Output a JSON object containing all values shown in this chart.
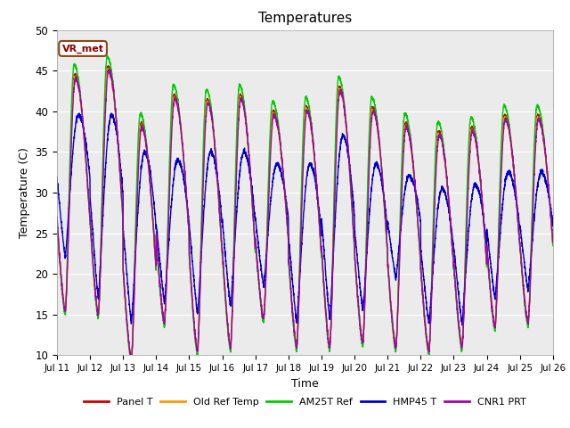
{
  "title": "Temperatures",
  "xlabel": "Time",
  "ylabel": "Temperature (C)",
  "ylim": [
    10,
    50
  ],
  "x_tick_labels": [
    "Jul 11",
    "Jul 12",
    "Jul 13",
    "Jul 14",
    "Jul 15",
    "Jul 16",
    "Jul 17",
    "Jul 18",
    "Jul 19",
    "Jul 20",
    "Jul 21",
    "Jul 22",
    "Jul 23",
    "Jul 24",
    "Jul 25",
    "Jul 26"
  ],
  "yticks": [
    10,
    15,
    20,
    25,
    30,
    35,
    40,
    45,
    50
  ],
  "legend_entries": [
    "Panel T",
    "Old Ref Temp",
    "AM25T Ref",
    "HMP45 T",
    "CNR1 PRT"
  ],
  "line_colors": [
    "#cc0000",
    "#ff9900",
    "#00cc00",
    "#0000cc",
    "#aa00aa"
  ],
  "annotation_text": "VR_met",
  "background_color": "#ebebeb",
  "grid_color": "white",
  "title_fontsize": 11,
  "axis_fontsize": 9,
  "n_days": 15,
  "points_per_day": 288,
  "day_maxes": [
    44.5,
    45.5,
    38.5,
    42.0,
    41.5,
    42.0,
    40.0,
    40.5,
    43.0,
    40.5,
    38.5,
    37.5,
    38.0,
    39.5,
    39.5
  ],
  "day_mins": [
    15.5,
    15.0,
    9.5,
    14.0,
    10.5,
    11.0,
    14.5,
    11.0,
    11.0,
    11.5,
    11.0,
    10.5,
    11.0,
    13.5,
    14.0
  ],
  "hmp45_maxes": [
    39.5,
    39.5,
    35.0,
    34.0,
    35.0,
    35.0,
    33.5,
    33.5,
    37.0,
    33.5,
    32.0,
    30.5,
    31.0,
    32.5,
    32.5
  ],
  "hmp45_mins": [
    22.0,
    17.0,
    14.0,
    16.5,
    15.0,
    16.0,
    18.5,
    14.0,
    14.5,
    15.5,
    19.5,
    14.0,
    14.0,
    17.0,
    18.0
  ]
}
